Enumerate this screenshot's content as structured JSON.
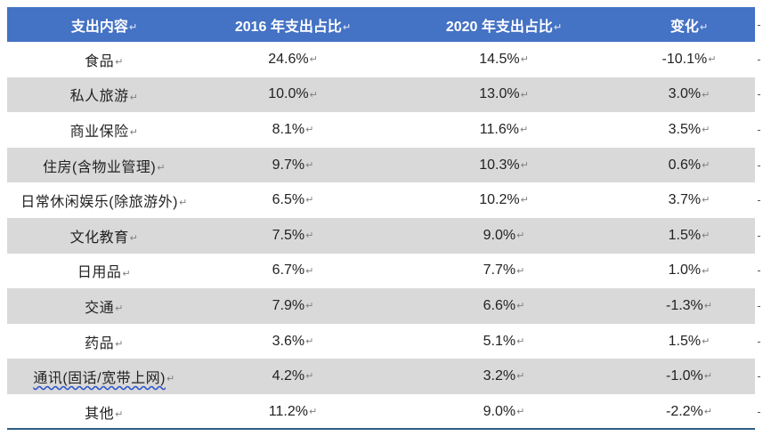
{
  "table": {
    "headers": [
      "支出内容",
      "2016 年支出占比",
      "2020 年支出占比",
      "变化"
    ],
    "rows": [
      {
        "category": "食品",
        "y2016": "24.6%",
        "y2020": "14.5%",
        "change": "-10.1%"
      },
      {
        "category": "私人旅游",
        "y2016": "10.0%",
        "y2020": "13.0%",
        "change": "3.0%"
      },
      {
        "category": "商业保险",
        "y2016": "8.1%",
        "y2020": "11.6%",
        "change": "3.5%"
      },
      {
        "category": "住房(含物业管理)",
        "y2016": "9.7%",
        "y2020": "10.3%",
        "change": "0.6%"
      },
      {
        "category": "日常休闲娱乐(除旅游外)",
        "y2016": "6.5%",
        "y2020": "10.2%",
        "change": "3.7%"
      },
      {
        "category": "文化教育",
        "y2016": "7.5%",
        "y2020": "9.0%",
        "change": "1.5%"
      },
      {
        "category": "日用品",
        "y2016": "6.7%",
        "y2020": "7.7%",
        "change": "1.0%"
      },
      {
        "category": "交通",
        "y2016": "7.9%",
        "y2020": "6.6%",
        "change": "-1.3%"
      },
      {
        "category": "药品",
        "y2016": "3.6%",
        "y2020": "5.1%",
        "change": "1.5%"
      },
      {
        "category": "通讯(固话/宽带上网)",
        "y2016": "4.2%",
        "y2020": "3.2%",
        "change": "-1.0%"
      },
      {
        "category": "其他",
        "y2016": "11.2%",
        "y2020": "9.0%",
        "change": "-2.2%"
      }
    ]
  },
  "colors": {
    "header_bg": "#4472c4",
    "band_bg": "#d9d9d9",
    "bottom_rule": "#2f5f85"
  }
}
